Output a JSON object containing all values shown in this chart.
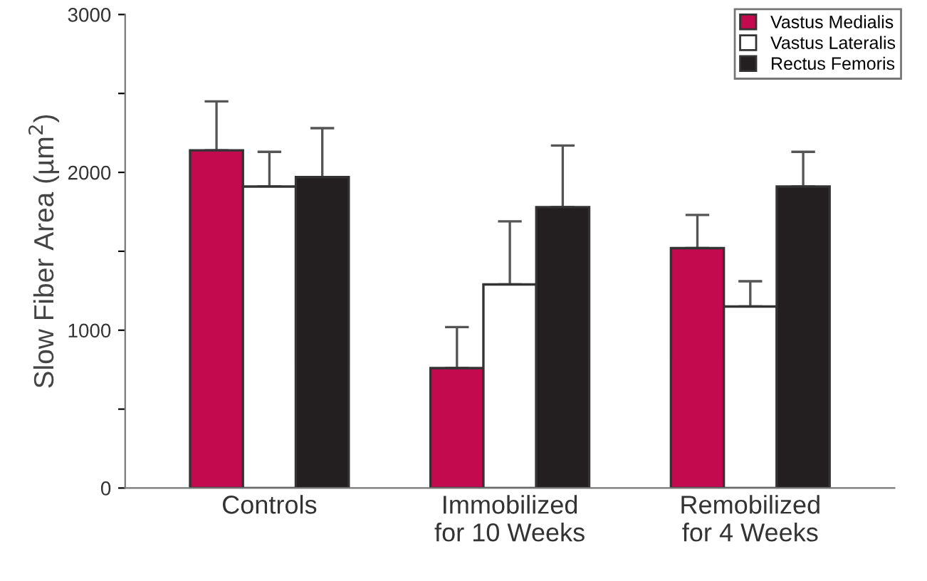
{
  "chart_data": {
    "type": "bar",
    "ylabel": "Slow Fiber Area (µm$^{2}$)",
    "categories": [
      "Controls",
      "Immobilized\nfor 10 Weeks",
      "Remobilized\nfor 4 Weeks"
    ],
    "series": [
      {
        "name": "Vastus Medialis",
        "color": "#c30a4f",
        "values": [
          2140,
          760,
          1520
        ],
        "errors": [
          [
            2140,
            2450
          ],
          [
            760,
            1020
          ],
          [
            1520,
            1730
          ]
        ]
      },
      {
        "name": "Vastus Lateralis",
        "color": "#ffffff",
        "values": [
          1910,
          1290,
          1150
        ],
        "errors": [
          [
            1910,
            2130
          ],
          [
            1290,
            1690
          ],
          [
            1150,
            1310
          ]
        ]
      },
      {
        "name": "Rectus Femoris",
        "color": "#231f20",
        "values": [
          1970,
          1780,
          1910
        ],
        "errors": [
          [
            1970,
            2280
          ],
          [
            1780,
            2170
          ],
          [
            1910,
            2130
          ]
        ]
      }
    ],
    "ylim": [
      0,
      3000
    ],
    "yticks": [
      0,
      {
        "value": 500,
        "label": null
      },
      1000,
      {
        "value": 1500,
        "label": null
      },
      2000,
      {
        "value": 2500,
        "label": null
      },
      3000
    ],
    "legend": "top right",
    "grid": false
  }
}
